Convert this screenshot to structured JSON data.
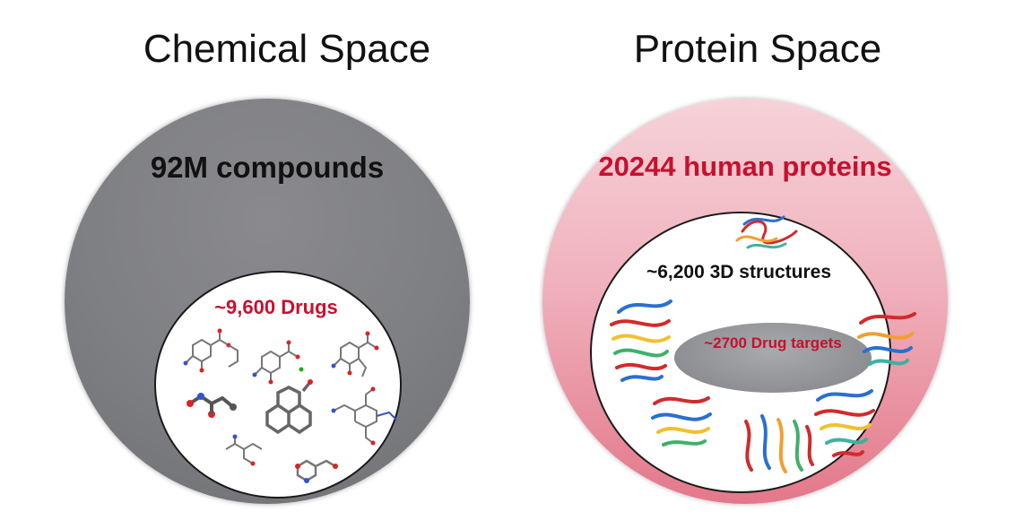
{
  "chemical_space": {
    "title": "Chemical Space",
    "outer_label": "92M compounds",
    "inner_label": "~9,600 Drugs"
  },
  "protein_space": {
    "title": "Protein Space",
    "outer_label": "20244 human proteins",
    "inner_label": "~6,200 3D structures",
    "core_label": "~2700 Drug targets"
  },
  "colors": {
    "chemical_outer": "#7e7f83",
    "protein_outer": "#f0b2bd",
    "highlight_red": "#c8102e",
    "core_gray": "#8e8f93"
  },
  "icons": {
    "molecules": "molecule-structure-icon",
    "proteins": "protein-ribbon-icon"
  }
}
